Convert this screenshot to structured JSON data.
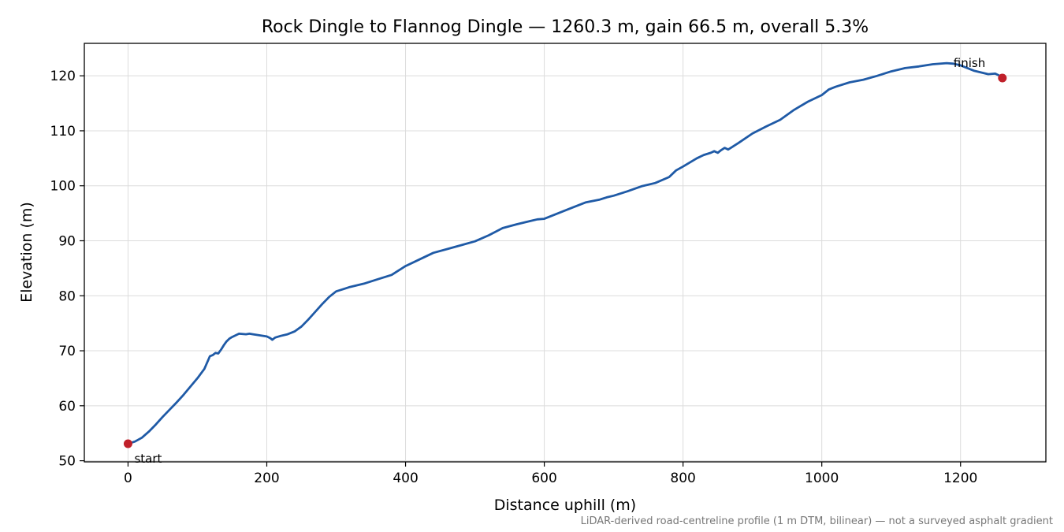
{
  "chart_data": {
    "type": "line",
    "title": "Rock Dingle to Flannog Dingle — 1260.3 m, gain 66.5 m, overall 5.3%",
    "xlabel": "Distance uphill (m)",
    "ylabel": "Elevation (m)",
    "footnote": "LiDAR-derived road-centreline profile (1 m DTM, bilinear) — not a surveyed asphalt gradient",
    "xlim": [
      -63,
      1323
    ],
    "ylim": [
      49.8,
      125.9
    ],
    "xticks": [
      0,
      200,
      400,
      600,
      800,
      1000,
      1200
    ],
    "yticks": [
      50,
      60,
      70,
      80,
      90,
      100,
      110,
      120
    ],
    "grid": true,
    "line_color": "#1f5aa6",
    "marker_color": "#c0202a",
    "series": [
      {
        "x": [
          0,
          10,
          20,
          30,
          40,
          50,
          60,
          70,
          80,
          90,
          100,
          110,
          118,
          122,
          126,
          130,
          134,
          138,
          142,
          146,
          150,
          160,
          170,
          175,
          180,
          190,
          200,
          205,
          208,
          210,
          212,
          220,
          230,
          240,
          250,
          260,
          270,
          280,
          290,
          300,
          310,
          320,
          340,
          360,
          380,
          390,
          400,
          420,
          440,
          460,
          480,
          500,
          520,
          540,
          560,
          580,
          590,
          600,
          610,
          620,
          640,
          660,
          680,
          690,
          700,
          720,
          740,
          760,
          780,
          790,
          800,
          820,
          830,
          840,
          845,
          850,
          855,
          860,
          865,
          870,
          880,
          900,
          920,
          940,
          960,
          980,
          1000,
          1010,
          1020,
          1040,
          1060,
          1080,
          1100,
          1120,
          1140,
          1160,
          1180,
          1190,
          1200,
          1210,
          1220,
          1240,
          1250,
          1255,
          1260.3
        ],
        "y": [
          53.1,
          53.5,
          54.2,
          55.3,
          56.6,
          58.0,
          59.3,
          60.6,
          62.0,
          63.5,
          65.0,
          66.7,
          69.0,
          69.2,
          69.6,
          69.5,
          70.2,
          71.0,
          71.7,
          72.2,
          72.5,
          73.1,
          73.0,
          73.1,
          73.0,
          72.8,
          72.6,
          72.3,
          72.0,
          72.2,
          72.4,
          72.7,
          73.0,
          73.5,
          74.4,
          75.7,
          77.1,
          78.5,
          79.8,
          80.8,
          81.2,
          81.6,
          82.2,
          83.0,
          83.8,
          84.6,
          85.4,
          86.6,
          87.8,
          88.5,
          89.2,
          89.9,
          91.0,
          92.3,
          93.0,
          93.6,
          93.9,
          94.0,
          94.5,
          95.0,
          96.0,
          97.0,
          97.5,
          97.9,
          98.2,
          99.0,
          99.9,
          100.5,
          101.6,
          102.8,
          103.5,
          105.0,
          105.6,
          106.0,
          106.3,
          106.0,
          106.5,
          106.9,
          106.6,
          107.0,
          107.8,
          109.5,
          110.8,
          112.0,
          113.8,
          115.3,
          116.5,
          117.5,
          118.0,
          118.8,
          119.3,
          120.0,
          120.8,
          121.4,
          121.7,
          122.1,
          122.3,
          122.2,
          121.9,
          121.4,
          120.9,
          120.3,
          120.4,
          120.1,
          119.6
        ]
      }
    ],
    "annotations": [
      {
        "label": "start",
        "x": 0,
        "y": 53.1
      },
      {
        "label": "finish",
        "x": 1260.3,
        "y": 119.6
      }
    ]
  }
}
